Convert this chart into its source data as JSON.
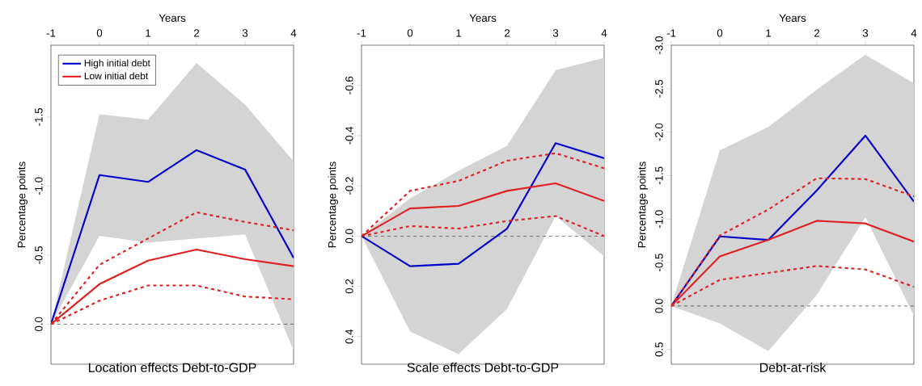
{
  "chart_data": [
    {
      "type": "line",
      "title": "Location effects Debt-to-GDP",
      "xlabel": "Years",
      "ylabel": "Percentage points",
      "x": [
        -1,
        0,
        1,
        2,
        3,
        4
      ],
      "xlim": [
        -1,
        4
      ],
      "xticks": [
        -1,
        0,
        1,
        2,
        3,
        4
      ],
      "ylim": [
        0.29,
        -2.02
      ],
      "yticks": [
        {
          "value": 0,
          "label": "0.0"
        },
        {
          "value": -0.5,
          "label": "-0.5"
        },
        {
          "value": -1,
          "label": "-1.0"
        },
        {
          "value": -1.5,
          "label": "-1.5"
        }
      ],
      "legend": "top left",
      "marker": "none",
      "ref_lines": [
        {
          "axis": "y",
          "value": 0,
          "color": "#000000",
          "line_style": "dashed"
        }
      ],
      "series": [
        {
          "name": "High initial debt",
          "color": "#0000cc",
          "line_style": "solid",
          "values": [
            0,
            -1.08,
            -1.03,
            -1.26,
            -1.12,
            -0.48
          ],
          "lower": [
            0,
            -0.64,
            -0.59,
            -0.62,
            -0.65,
            0.19
          ],
          "upper": [
            0,
            -1.52,
            -1.48,
            -1.89,
            -1.59,
            -1.18
          ]
        },
        {
          "name": "Low initial debt",
          "color": "#e02020",
          "line_style": "solid",
          "values": [
            0,
            -0.29,
            -0.46,
            -0.54,
            -0.47,
            -0.42
          ]
        },
        {
          "color": "#e02020",
          "line_style": "dashed",
          "values": [
            0,
            -0.43,
            -0.62,
            -0.81,
            -0.74,
            -0.68
          ]
        },
        {
          "color": "#e02020",
          "line_style": "dashed",
          "values": [
            0,
            -0.17,
            -0.28,
            -0.28,
            -0.2,
            -0.18
          ]
        }
      ]
    },
    {
      "type": "line",
      "title": "Scale effects Debt-to-GDP",
      "xlabel": "Years",
      "ylabel": "Percentage points",
      "x": [
        -1,
        0,
        1,
        2,
        3,
        4
      ],
      "xlim": [
        -1,
        4
      ],
      "xticks": [
        -1,
        0,
        1,
        2,
        3,
        4
      ],
      "ylim": [
        0.51,
        -0.76
      ],
      "yticks": [
        {
          "value": 0.4,
          "label": "0.4"
        },
        {
          "value": 0.2,
          "label": "0.2"
        },
        {
          "value": 0,
          "label": "0.0"
        },
        {
          "value": -0.2,
          "label": "-0.2"
        },
        {
          "value": -0.4,
          "label": "-0.4"
        },
        {
          "value": -0.6,
          "label": "-0.6"
        }
      ],
      "marker": "none",
      "ref_lines": [
        {
          "axis": "y",
          "value": 0,
          "color": "#000000",
          "line_style": "dashed"
        }
      ],
      "series": [
        {
          "color": "#0000cc",
          "line_style": "solid",
          "values": [
            0,
            0.12,
            0.11,
            -0.03,
            -0.37,
            -0.31
          ],
          "lower": [
            0,
            0.38,
            0.47,
            0.29,
            -0.08,
            0.08
          ],
          "upper": [
            0,
            -0.15,
            -0.26,
            -0.36,
            -0.66,
            -0.71
          ]
        },
        {
          "color": "#e02020",
          "line_style": "solid",
          "values": [
            0,
            -0.11,
            -0.12,
            -0.18,
            -0.21,
            -0.14
          ]
        },
        {
          "color": "#e02020",
          "line_style": "dashed",
          "values": [
            0,
            -0.18,
            -0.22,
            -0.3,
            -0.33,
            -0.27
          ]
        },
        {
          "color": "#e02020",
          "line_style": "dashed",
          "values": [
            0,
            -0.04,
            -0.03,
            -0.06,
            -0.08,
            0
          ]
        }
      ]
    },
    {
      "type": "line",
      "title": "Debt-at-risk",
      "xlabel": "Years",
      "ylabel": "Percentage points",
      "x": [
        -1,
        0,
        1,
        2,
        3,
        4
      ],
      "xlim": [
        -1,
        4
      ],
      "xticks": [
        -1,
        0,
        1,
        2,
        3,
        4
      ],
      "ylim": [
        0.67,
        -3.0
      ],
      "yticks": [
        {
          "value": 0.5,
          "label": "0.5"
        },
        {
          "value": 0,
          "label": "0.0"
        },
        {
          "value": -0.5,
          "label": "-0.5"
        },
        {
          "value": -1,
          "label": "-1.0"
        },
        {
          "value": -1.5,
          "label": "-1.5"
        },
        {
          "value": -2,
          "label": "-2.0"
        },
        {
          "value": -2.5,
          "label": "-2.5"
        },
        {
          "value": -3,
          "label": "-3.0"
        }
      ],
      "marker": "none",
      "ref_lines": [
        {
          "axis": "y",
          "value": 0,
          "color": "#000000",
          "line_style": "dashed"
        }
      ],
      "series": [
        {
          "color": "#0000cc",
          "line_style": "solid",
          "values": [
            0,
            -0.8,
            -0.76,
            -1.33,
            -1.96,
            -1.2
          ],
          "lower": [
            0,
            0.2,
            0.52,
            -0.13,
            -1.02,
            0.11
          ],
          "upper": [
            0,
            -1.79,
            -2.06,
            -2.49,
            -2.89,
            -2.56
          ]
        },
        {
          "color": "#e02020",
          "line_style": "solid",
          "values": [
            0,
            -0.57,
            -0.76,
            -0.98,
            -0.95,
            -0.74
          ]
        },
        {
          "color": "#e02020",
          "line_style": "dashed",
          "values": [
            0,
            -0.81,
            -1.11,
            -1.47,
            -1.46,
            -1.26
          ]
        },
        {
          "color": "#e02020",
          "line_style": "dashed",
          "values": [
            0,
            -0.3,
            -0.38,
            -0.46,
            -0.42,
            -0.22
          ]
        }
      ]
    }
  ]
}
